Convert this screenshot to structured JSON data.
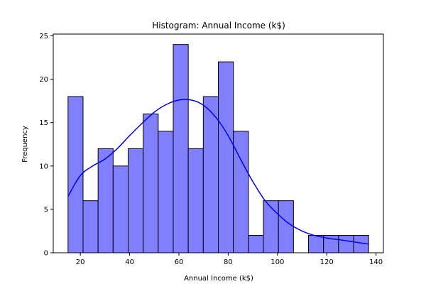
{
  "chart_data": {
    "type": "bar",
    "title": "Histogram: Annual Income (k$)",
    "xlabel": "Annual Income (k$)",
    "ylabel": "Frequency",
    "xlim": [
      9,
      143
    ],
    "ylim": [
      0,
      25.2
    ],
    "xticks": [
      20,
      40,
      60,
      80,
      100,
      120,
      140
    ],
    "yticks": [
      0,
      5,
      10,
      15,
      20,
      25
    ],
    "grid": false,
    "bins": {
      "start": 15,
      "width": 6.1,
      "counts": [
        18,
        6,
        12,
        10,
        12,
        16,
        14,
        24,
        12,
        18,
        22,
        14,
        2,
        6,
        6,
        0,
        2,
        2,
        2,
        2
      ]
    },
    "kde_curve": {
      "x": [
        15,
        20,
        25,
        30,
        35,
        40,
        45,
        50,
        55,
        60,
        65,
        70,
        75,
        80,
        85,
        90,
        95,
        100,
        105,
        110,
        115,
        120,
        125,
        130,
        137
      ],
      "y": [
        6.5,
        8.9,
        10.0,
        10.8,
        12.0,
        13.5,
        14.9,
        16.2,
        17.1,
        17.6,
        17.6,
        17.0,
        15.6,
        13.5,
        10.8,
        8.2,
        6.0,
        4.5,
        3.3,
        2.5,
        2.0,
        1.7,
        1.5,
        1.3,
        1.0
      ]
    },
    "colors": {
      "bar_fill": "#8080ff",
      "bar_edge": "#000000",
      "kde_line": "#0000ee"
    }
  }
}
